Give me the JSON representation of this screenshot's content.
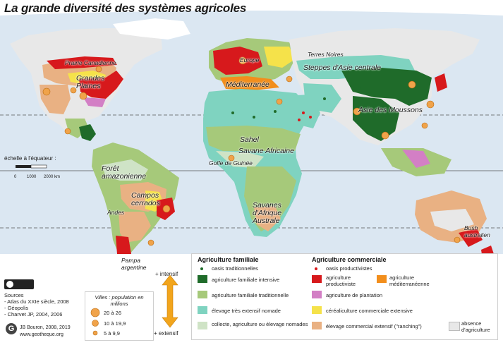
{
  "title": "La grande diversité des systèmes agricoles",
  "colors": {
    "ocean": "#dbe7f2",
    "land_none": "#e8e8e8",
    "oasis_dot": "#1f6b2a",
    "intensive_family": "#1f6b2a",
    "traditional_family": "#a6c97a",
    "nomadic": "#7fd3c0",
    "collecte": "#cfe3c6",
    "productiviste": "#d7191c",
    "mediterranean": "#f28e1c",
    "plantation": "#d37fc5",
    "cereal": "#f5e24a",
    "ranching": "#e9b183",
    "city": "#f0a34a"
  },
  "regions": [
    "Prairie Canadienne",
    "Grandes Plaines",
    "Europe",
    "Terres Noires",
    "Steppes d'Asie centrale",
    "Méditerranée",
    "Asie des Moussons",
    "Sahel",
    "Savane Africaine",
    "Golfe de Guinée",
    "Forêt amazonienne",
    "Campos cerrados",
    "Andes",
    "Savanes d'Afrique Australe",
    "Bush australien",
    "Pampa argentine"
  ],
  "scale": {
    "label": "échelle à l'équateur :",
    "ticks": [
      "0",
      "1000",
      "2000 km"
    ]
  },
  "intensity": {
    "top": "+ intensif",
    "bottom": "+ extensif"
  },
  "legend": {
    "familiale_title": "Agriculture familiale",
    "commerciale_title": "Agriculture commerciale",
    "oasis_trad": "oasis traditionnelles",
    "intensive": "agriculture familiale intensive",
    "traditionnelle": "agriculture familiale traditionnelle",
    "nomade": "élevage très extensif nomade",
    "collecte": "collecte, agriculture ou élevage nomades",
    "oasis_prod": "oasis productivistes",
    "productiviste": "agriculture productiviste",
    "mediterraneenne": "agriculture méditerranéenne",
    "plantation": "agriculture de plantation",
    "cerealiculture": "céréaliculture commerciale extensive",
    "ranching": "élevage commercial extensif (\"ranching\")",
    "absence": "absence d'agriculture"
  },
  "cities": {
    "title": "Villes : population en millions",
    "classes": [
      "20 à 26",
      "10 à 19,9",
      "5 à 9,9"
    ]
  },
  "sources": {
    "heading": "Sources",
    "items": [
      "- Atlas du XXIe siècle, 2008",
      "- Géopolis",
      "- Charvet JP, 2004, 2006"
    ]
  },
  "credit": {
    "author": "JB Bouron, 2008, 2019",
    "site": "www.geotheque.org"
  }
}
